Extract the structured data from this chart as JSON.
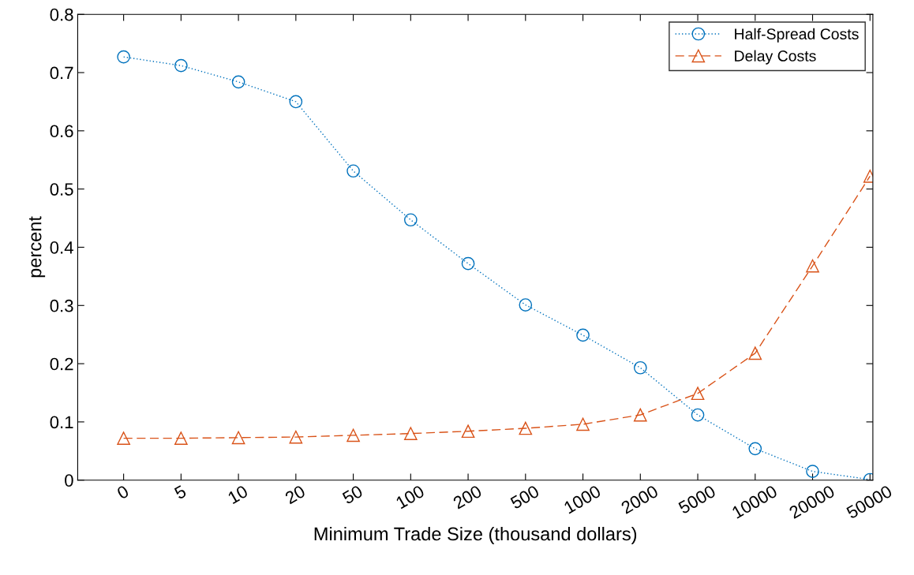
{
  "chart_data": {
    "type": "line",
    "xlabel": "Minimum Trade Size (thousand dollars)",
    "ylabel": "percent",
    "categories": [
      "0",
      "5",
      "10",
      "20",
      "50",
      "100",
      "200",
      "500",
      "1000",
      "2000",
      "5000",
      "10000",
      "20000",
      "50000"
    ],
    "series": [
      {
        "name": "Half-Spread Costs",
        "color": "#0072bd",
        "marker": "circle",
        "line_style": "dotted",
        "values": [
          0.727,
          0.712,
          0.684,
          0.65,
          0.531,
          0.447,
          0.372,
          0.301,
          0.249,
          0.193,
          0.112,
          0.054,
          0.015,
          0.001
        ]
      },
      {
        "name": "Delay Costs",
        "color": "#d95319",
        "marker": "triangle",
        "line_style": "dashed",
        "values": [
          0.072,
          0.072,
          0.073,
          0.074,
          0.077,
          0.08,
          0.084,
          0.089,
          0.096,
          0.112,
          0.149,
          0.218,
          0.368,
          0.522
        ]
      }
    ],
    "ylim": [
      0,
      0.8
    ],
    "yticks": [
      0,
      0.1,
      0.2,
      0.3,
      0.4,
      0.5,
      0.6,
      0.7,
      0.8
    ],
    "grid": false,
    "legend": "top right"
  }
}
